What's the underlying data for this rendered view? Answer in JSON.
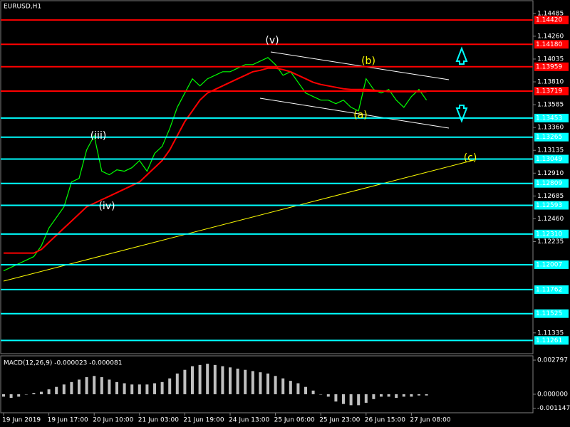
{
  "chart_data": [
    {
      "type": "line",
      "title": "EURUSD,H1",
      "categories": [
        "19 Jun 2019",
        null,
        null,
        null,
        null,
        null,
        "19 Jun 17:00",
        null,
        null,
        null,
        null,
        null,
        "20 Jun 10:00",
        null,
        null,
        null,
        null,
        null,
        "21 Jun 03:00",
        null,
        null,
        null,
        null,
        null,
        "21 Jun 19:00",
        null,
        null,
        null,
        null,
        null,
        "24 Jun 13:00",
        null,
        null,
        null,
        null,
        null,
        "25 Jun 06:00",
        null,
        null,
        null,
        null,
        null,
        "25 Jun 23:00",
        null,
        null,
        null,
        null,
        null,
        "26 Jun 15:00",
        null,
        null,
        null,
        null,
        null,
        "27 Jun 08:00",
        null,
        null
      ],
      "series": [
        {
          "color": "#00ff00",
          "values": [
            1.11947,
            1.11982,
            1.12017,
            1.12052,
            1.12087,
            1.12193,
            1.12368,
            1.12473,
            1.12578,
            1.12823,
            1.12858,
            1.13139,
            1.13279,
            1.12929,
            1.12894,
            1.12943,
            1.12929,
            1.12964,
            1.13034,
            1.12929,
            1.13104,
            1.13174,
            1.13349,
            1.13559,
            1.137,
            1.1384,
            1.1377,
            1.1384,
            1.13875,
            1.1391,
            1.1391,
            1.13945,
            1.1398,
            1.1398,
            1.14015,
            1.1405,
            1.1398,
            1.13875,
            1.1391,
            1.13805,
            1.137,
            1.13665,
            1.1363,
            1.1363,
            1.13595,
            1.1363,
            1.13559,
            1.13524,
            1.1384,
            1.13735,
            1.137,
            1.13735,
            1.1363,
            1.13559,
            1.13665,
            1.13735,
            1.1363
          ]
        },
        {
          "color": "#ff0000",
          "values": [
            1.12122,
            1.12122,
            1.12122,
            1.12122,
            1.12122,
            1.12157,
            1.12228,
            1.12298,
            1.12368,
            1.12438,
            1.12508,
            1.12578,
            1.12613,
            1.12648,
            1.12683,
            1.12718,
            1.12753,
            1.12788,
            1.12823,
            1.12894,
            1.12964,
            1.13034,
            1.13139,
            1.13279,
            1.13419,
            1.13524,
            1.1363,
            1.137,
            1.13735,
            1.1377,
            1.13805,
            1.1384,
            1.13875,
            1.1391,
            1.13924,
            1.13945,
            1.13945,
            1.13931,
            1.1391,
            1.13875,
            1.1384,
            1.13805,
            1.13784,
            1.1377,
            1.13756,
            1.13742,
            1.13735,
            1.13735,
            1.13735,
            1.13728,
            1.13721,
            1.13714,
            1.13714,
            1.13714,
            1.13714,
            1.13714,
            1.13714
          ]
        }
      ],
      "ylim": [
        1.1113,
        1.1461
      ],
      "yticks": [
        1.14485,
        {
          "value": 1.1426,
          "label": "1.14260"
        },
        1.14035,
        {
          "value": 1.1381,
          "label": "1.13810"
        },
        1.13585,
        {
          "value": 1.1336,
          "label": "1.13360"
        },
        1.13135,
        {
          "value": 1.1291,
          "label": "1.12910"
        },
        1.12685,
        {
          "value": 1.1246,
          "label": "1.12460"
        },
        1.12235,
        1.11335
      ],
      "levels": [
        {
          "value": 1.1442,
          "label": "1.14420",
          "color": "#ff0000"
        },
        {
          "value": 1.1418,
          "label": "1.14180",
          "color": "#ff0000"
        },
        {
          "value": 1.13959,
          "label": "1.13959",
          "color": "#ff0000"
        },
        {
          "value": 1.13719,
          "label": "1.13719",
          "color": "#ff0000"
        },
        {
          "value": 1.13453,
          "label": "1.13453",
          "color": "#00ffff"
        },
        {
          "value": 1.13265,
          "label": "1.13265",
          "color": "#00ffff"
        },
        {
          "value": 1.13049,
          "label": "1.13049",
          "color": "#00ffff"
        },
        {
          "value": 1.12809,
          "label": "1.12809",
          "color": "#00ffff"
        },
        {
          "value": 1.12593,
          "label": "1.12593",
          "color": "#00ffff"
        },
        {
          "value": 1.1231,
          "label": "1.12310",
          "color": "#00ffff"
        },
        {
          "value": 1.12007,
          "label": "1.12007",
          "color": "#00ffff"
        },
        {
          "value": 1.11762,
          "label": "1.11762",
          "color": "#00ffff"
        },
        {
          "value": 1.11525,
          "label": "1.11525",
          "color": "#00ffff"
        },
        {
          "value": 1.11261,
          "label": "1.11261",
          "color": "#00ffff"
        }
      ],
      "annotations": [
        "(v)",
        "(b)",
        "(iii)",
        "(iv)",
        "(a)",
        "(c)"
      ]
    },
    {
      "type": "bar",
      "title": "MACD(12,26,9) -0.000023 -0.000081",
      "color": "#c0c0c0",
      "values": [
        -0.0002,
        -0.0003,
        -0.0002,
        0.0,
        0.0001,
        0.0002,
        0.0004,
        0.0006,
        0.0008,
        0.001,
        0.0012,
        0.0014,
        0.0015,
        0.0014,
        0.0012,
        0.001,
        0.0009,
        0.0008,
        0.0008,
        0.0008,
        0.0009,
        0.001,
        0.0013,
        0.0017,
        0.002,
        0.0023,
        0.0024,
        0.0025,
        0.0024,
        0.0023,
        0.0022,
        0.0021,
        0.002,
        0.0019,
        0.0018,
        0.0017,
        0.0015,
        0.0013,
        0.0011,
        0.0009,
        0.0006,
        0.0003,
        0.0,
        -0.0002,
        -0.0006,
        -0.0008,
        -0.0009,
        -0.0009,
        -0.0007,
        -0.0004,
        -0.0002,
        -0.0002,
        -0.0003,
        -0.0002,
        -0.0002,
        -0.0001,
        -0.0001
      ],
      "ylim": [
        -0.00152,
        0.00315
      ],
      "yticks": [
        0.002797,
        {
          "value": 0,
          "label": "0.000000"
        },
        -0.001147
      ]
    }
  ]
}
